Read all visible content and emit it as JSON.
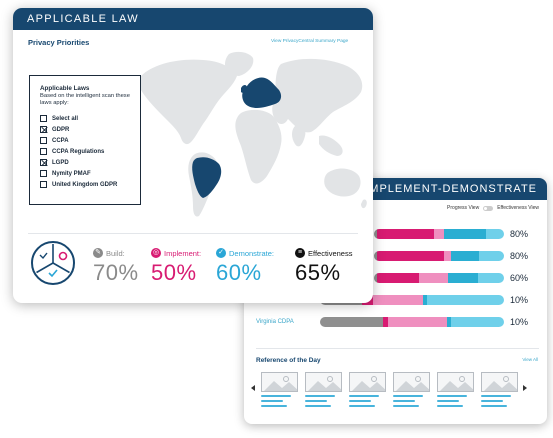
{
  "applicable_law": {
    "header": "APPLICABLE LAW",
    "title": "Privacy Priorities",
    "summary_link": "View PrivacyCentral Summary Page",
    "laws_box": {
      "title": "Applicable Laws",
      "subtitle": "Based on the intelligent scan these laws apply:",
      "items": [
        {
          "label": "Select all",
          "checked": false
        },
        {
          "label": "GDPR",
          "checked": true
        },
        {
          "label": "CCPA",
          "checked": false
        },
        {
          "label": "CCPA Regulations",
          "checked": false
        },
        {
          "label": "LGPD",
          "checked": true
        },
        {
          "label": "Nymity PMAF",
          "checked": false
        },
        {
          "label": "United Kingdom GDPR",
          "checked": false
        }
      ]
    },
    "metrics": [
      {
        "label": "Build:",
        "value": "70%",
        "color": "#8a8a8a",
        "icon": "wrench-icon"
      },
      {
        "label": "Implement:",
        "value": "50%",
        "color": "#d81b72",
        "icon": "target-icon"
      },
      {
        "label": "Demonstrate:",
        "value": "60%",
        "color": "#2aa6d6",
        "icon": "check-icon"
      },
      {
        "label": "Effectiveness",
        "value": "65%",
        "color": "#111111",
        "icon": "list-icon"
      }
    ]
  },
  "bid": {
    "header": "BUILD-IMPLEMENT-DEMONSTRATE",
    "toggle": {
      "left": "Progress View",
      "right": "Effectiveness View"
    },
    "rows": [
      {
        "label": "",
        "value": "80%",
        "segments": [
          [
            "#8f8f8f",
            0.02
          ],
          [
            "#d81b72",
            0.44
          ],
          [
            "#ef8fbf",
            0.08
          ],
          [
            "#2aaed2",
            0.32
          ],
          [
            "#6fd0ea",
            0.14
          ]
        ]
      },
      {
        "label": "",
        "value": "80%",
        "segments": [
          [
            "#8f8f8f",
            0.02
          ],
          [
            "#d81b72",
            0.52
          ],
          [
            "#ef8fbf",
            0.05
          ],
          [
            "#2aaed2",
            0.22
          ],
          [
            "#6fd0ea",
            0.19
          ]
        ]
      },
      {
        "label": "",
        "value": "60%",
        "segments": [
          [
            "#8f8f8f",
            0.02
          ],
          [
            "#d81b72",
            0.33
          ],
          [
            "#ef8fbf",
            0.22
          ],
          [
            "#2aaed2",
            0.23
          ],
          [
            "#6fd0ea",
            0.2
          ]
        ]
      },
      {
        "label": "",
        "value": "10%",
        "segments": [
          [
            "#8f8f8f",
            0.23
          ],
          [
            "#d81b72",
            0.06
          ],
          [
            "#ef8fbf",
            0.27
          ],
          [
            "#2aaed2",
            0.02
          ],
          [
            "#6fd0ea",
            0.42
          ]
        ]
      },
      {
        "label": "Virginia CDPA",
        "value": "10%",
        "segments": [
          [
            "#8f8f8f",
            0.34
          ],
          [
            "#d81b72",
            0.03
          ],
          [
            "#ef8fbf",
            0.32
          ],
          [
            "#2aaed2",
            0.02
          ],
          [
            "#6fd0ea",
            0.29
          ]
        ]
      }
    ],
    "reference_title": "Reference of the Day",
    "view_all": "View All",
    "thumbnail_count": 6
  },
  "colors": {
    "header_navy": "#17476f",
    "build_gray": "#8a8a8a",
    "implement_magenta": "#d81b72",
    "demonstrate_blue": "#2aa6d6",
    "map_highlight": "#17476f",
    "map_base": "#e2e4e6"
  }
}
